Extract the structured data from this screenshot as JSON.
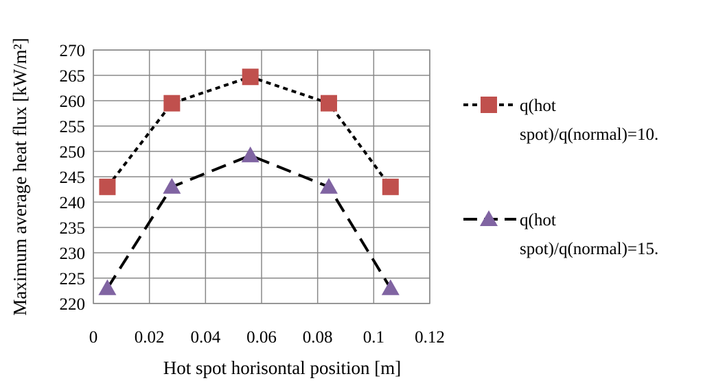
{
  "chart_data": {
    "type": "line",
    "xlabel": "Hot spot horisontal position [m]",
    "ylabel": "Maximum average  heat flux  [kW/m²]",
    "xlim": [
      0,
      0.12
    ],
    "ylim": [
      220,
      270
    ],
    "x_ticks": [
      "0",
      "0.02",
      "0.04",
      "0.06",
      "0.08",
      "0.1",
      "0.12"
    ],
    "y_ticks": [
      "220",
      "225",
      "230",
      "235",
      "240",
      "245",
      "250",
      "255",
      "260",
      "265",
      "270"
    ],
    "grid": true,
    "legend_position": "right",
    "series": [
      {
        "name_lines": [
          "q(hot",
          "spot)/q(normal)=10."
        ],
        "x": [
          0.005,
          0.028,
          0.056,
          0.084,
          0.106
        ],
        "y": [
          243,
          259.5,
          264.7,
          259.5,
          243
        ],
        "marker": "square",
        "line_style": "dotted",
        "marker_color": "#C0504D"
      },
      {
        "name_lines": [
          "q(hot",
          "spot)/q(normal)=15."
        ],
        "x": [
          0.005,
          0.028,
          0.056,
          0.084,
          0.106
        ],
        "y": [
          223,
          243,
          249.2,
          243,
          223
        ],
        "marker": "triangle",
        "line_style": "dashed",
        "marker_color": "#8064A2"
      }
    ]
  }
}
